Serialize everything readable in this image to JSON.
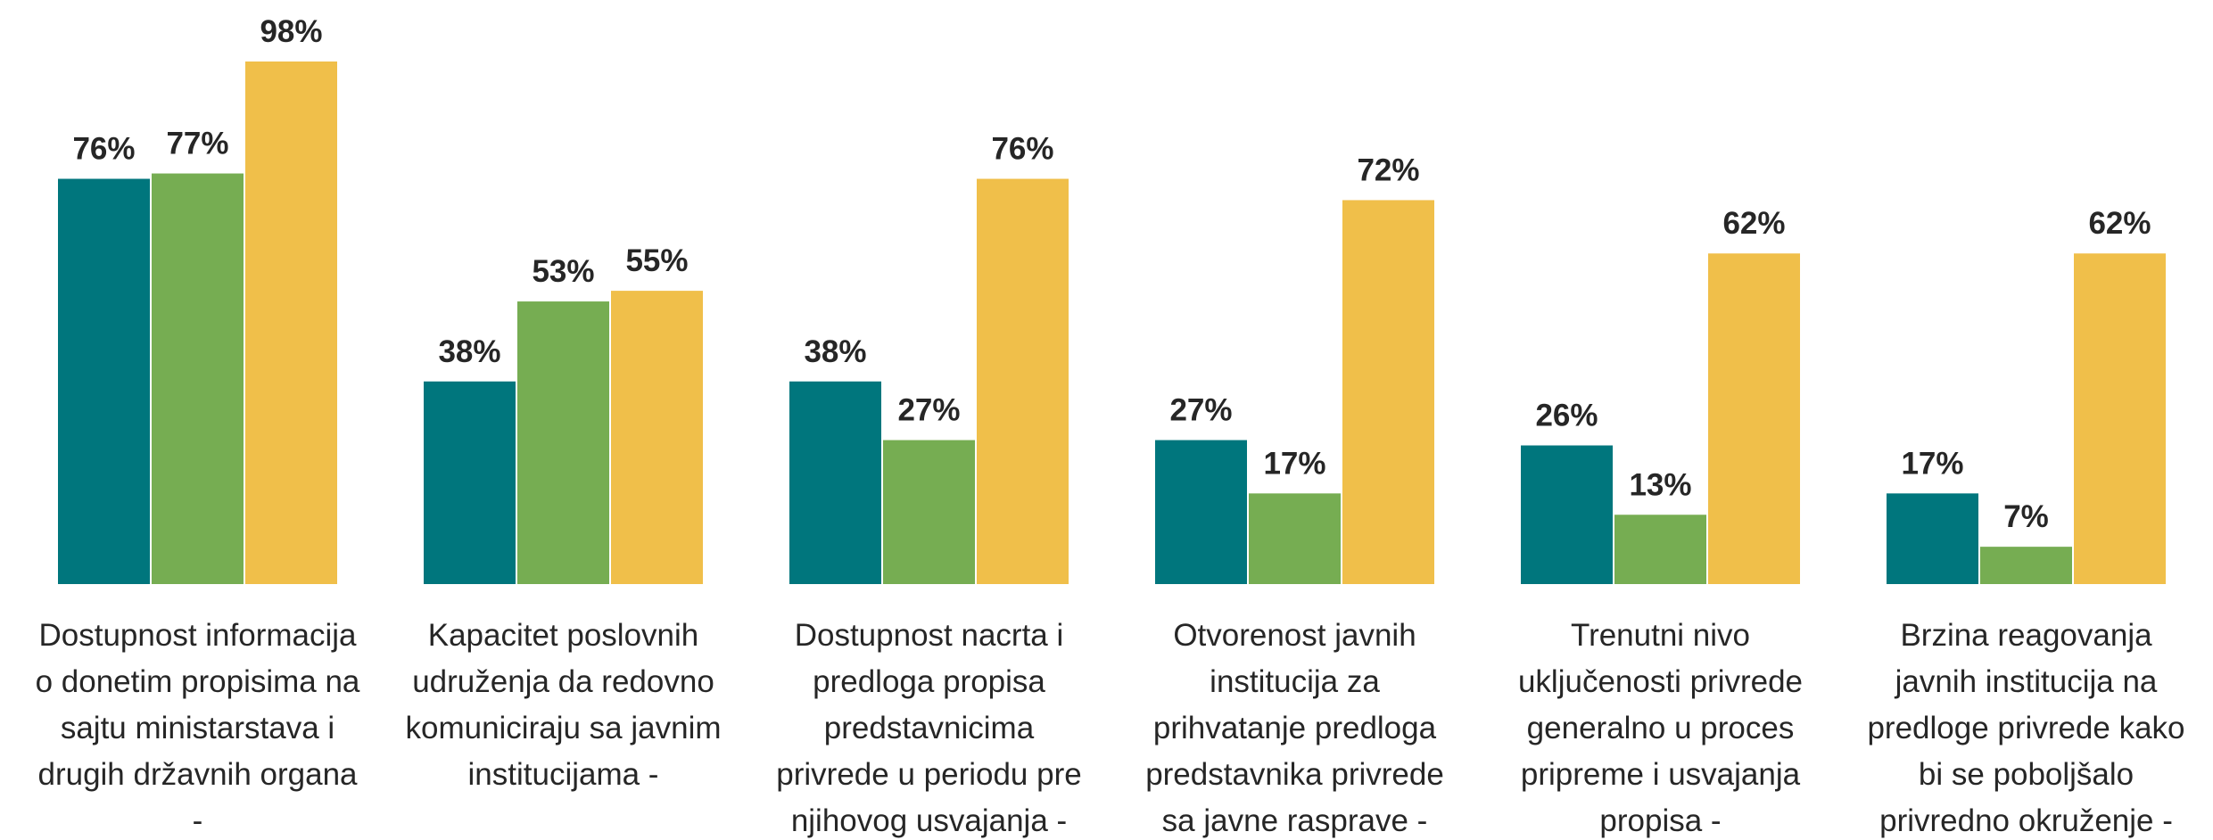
{
  "chart_data": {
    "type": "bar",
    "categories": [
      "Dostupnost informacija\no donetim propisima na\nsajtu ministarstava i\ndrugih državnih organa\n-",
      "Kapacitet poslovnih\nudruženja da redovno\nkomuniciraju sa javnim\ninstitucijama -",
      "Dostupnost nacrta i\npredloga propisa\npredstavnicima\nprivrede u periodu pre\nnjihovog usvajanja -",
      "Otvorenost javnih\ninstitucija za\nprihvatanje predloga\npredstavnika privrede\nsa javne rasprave -",
      "Trenutni nivo\nuključenosti privrede\ngeneralno u proces\npripreme i usvajanja\npropisa -",
      "Brzina reagovanja\njavnih institucija na\npredloge privrede kako\nbi se poboljšalo\nprivredno okruženje -"
    ],
    "series": [
      {
        "color": "#00767d",
        "values": [
          76,
          38,
          38,
          27,
          26,
          17
        ],
        "value_labels": [
          "76%",
          "38%",
          "38%",
          "27%",
          "26%",
          "17%"
        ]
      },
      {
        "color": "#76ad52",
        "values": [
          77,
          53,
          27,
          17,
          13,
          7
        ],
        "value_labels": [
          "77%",
          "53%",
          "27%",
          "17%",
          "13%",
          "7%"
        ]
      },
      {
        "color": "#f0bf4a",
        "values": [
          98,
          55,
          76,
          72,
          62,
          62
        ],
        "value_labels": [
          "98%",
          "55%",
          "76%",
          "72%",
          "62%",
          "62%"
        ]
      }
    ],
    "ylim": [
      0,
      100
    ]
  }
}
